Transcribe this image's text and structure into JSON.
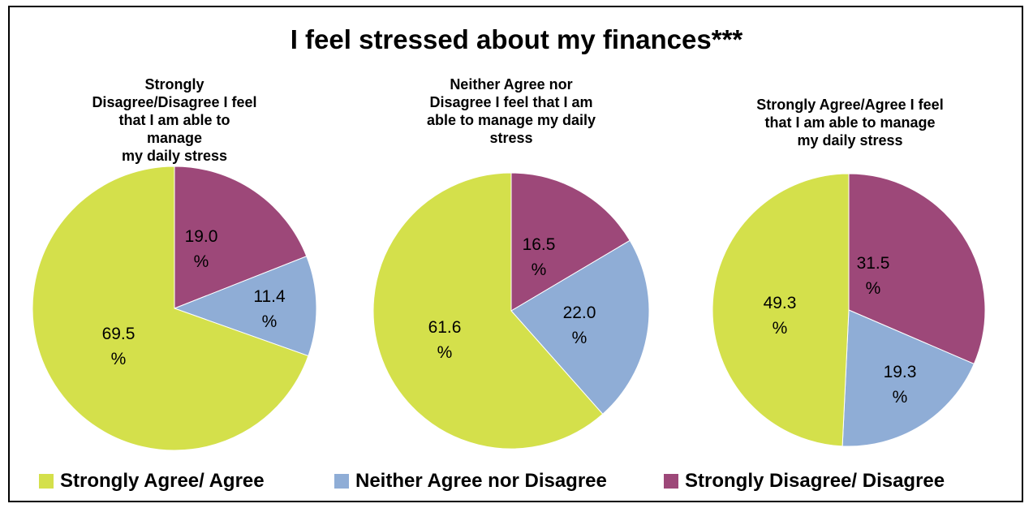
{
  "chart_data": {
    "type": "pie",
    "title": "I feel stressed about my finances***",
    "legend": {
      "position": "bottom",
      "entries": [
        "Strongly Agree/ Agree",
        "Neither Agree nor Disagree",
        "Strongly Disagree/ Disagree"
      ]
    },
    "colors": {
      "Strongly Agree/ Agree": "#D4E04B",
      "Neither Agree nor Disagree": "#8FADD6",
      "Strongly Disagree/ Disagree": "#9D4879"
    },
    "charts": [
      {
        "subtitle": [
          "Strongly",
          "Disagree/Disagree  I feel",
          "that I am able to manage",
          "my daily stress"
        ],
        "slices": [
          {
            "category": "Strongly Disagree/ Disagree",
            "value": 19.0,
            "label": [
              "19.0",
              "%"
            ]
          },
          {
            "category": "Neither Agree nor Disagree",
            "value": 11.4,
            "label": [
              "11.4",
              "%"
            ]
          },
          {
            "category": "Strongly Agree/ Agree",
            "value": 69.5,
            "label": [
              "69.5",
              "%"
            ]
          }
        ]
      },
      {
        "subtitle": [
          "Neither Agree  nor",
          "Disagree  I feel that I am",
          "able to manage my daily",
          "stress"
        ],
        "slices": [
          {
            "category": "Strongly Disagree/ Disagree",
            "value": 16.5,
            "label": [
              "16.5",
              "%"
            ]
          },
          {
            "category": "Neither Agree nor Disagree",
            "value": 22.0,
            "label": [
              "22.0",
              "%"
            ]
          },
          {
            "category": "Strongly Agree/ Agree",
            "value": 61.6,
            "label": [
              "61.6",
              "%"
            ]
          }
        ]
      },
      {
        "subtitle": [
          "Strongly Agree/Agree I feel",
          "that I am able to manage",
          "my daily stress"
        ],
        "slices": [
          {
            "category": "Strongly Disagree/ Disagree",
            "value": 31.5,
            "label": [
              "31.5",
              "%"
            ]
          },
          {
            "category": "Neither Agree nor Disagree",
            "value": 19.3,
            "label": [
              "19.3",
              "%"
            ]
          },
          {
            "category": "Strongly Agree/ Agree",
            "value": 49.3,
            "label": [
              "49.3",
              "%"
            ]
          }
        ]
      }
    ]
  }
}
